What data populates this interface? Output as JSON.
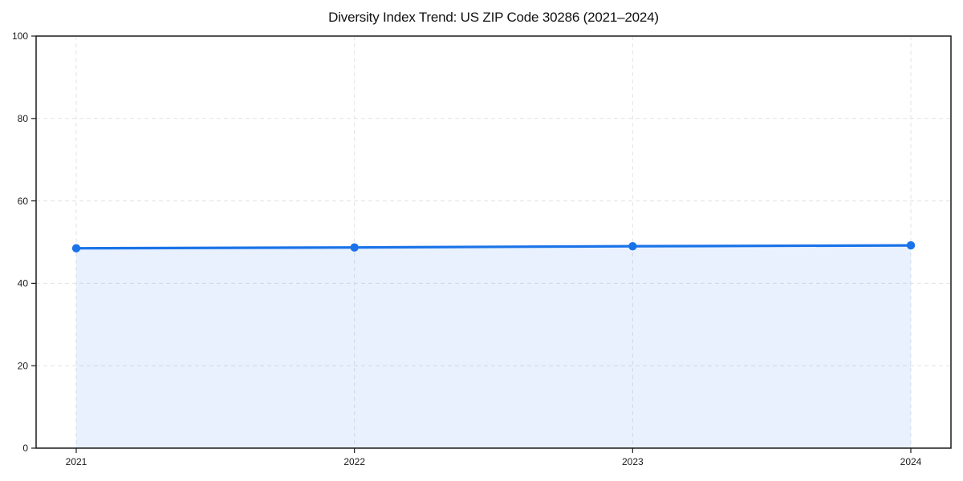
{
  "chart_data": {
    "type": "area",
    "title": "Diversity Index Trend: US ZIP Code 30286 (2021–2024)",
    "x": [
      2021,
      2022,
      2023,
      2024
    ],
    "xtick_labels": [
      "2021",
      "2022",
      "2023",
      "2024"
    ],
    "series": [
      {
        "name": "Diversity Index",
        "values": [
          48.5,
          48.7,
          49.0,
          49.2
        ]
      }
    ],
    "xlabel": "",
    "ylabel": "",
    "ylim": [
      0,
      100
    ],
    "yticks": [
      0,
      20,
      40,
      60,
      80,
      100
    ],
    "grid": true,
    "grid_style": "dashed",
    "legend": "none",
    "marker": "circle",
    "colors": {
      "line": "#1a73e8",
      "fill": "#1a73e8",
      "fill_opacity": 0.1,
      "grid": "#e3e3e3",
      "axis": "#1a1a1a",
      "tick_text": "#1a1a1a",
      "title_text": "#111111",
      "background": "#ffffff"
    }
  }
}
